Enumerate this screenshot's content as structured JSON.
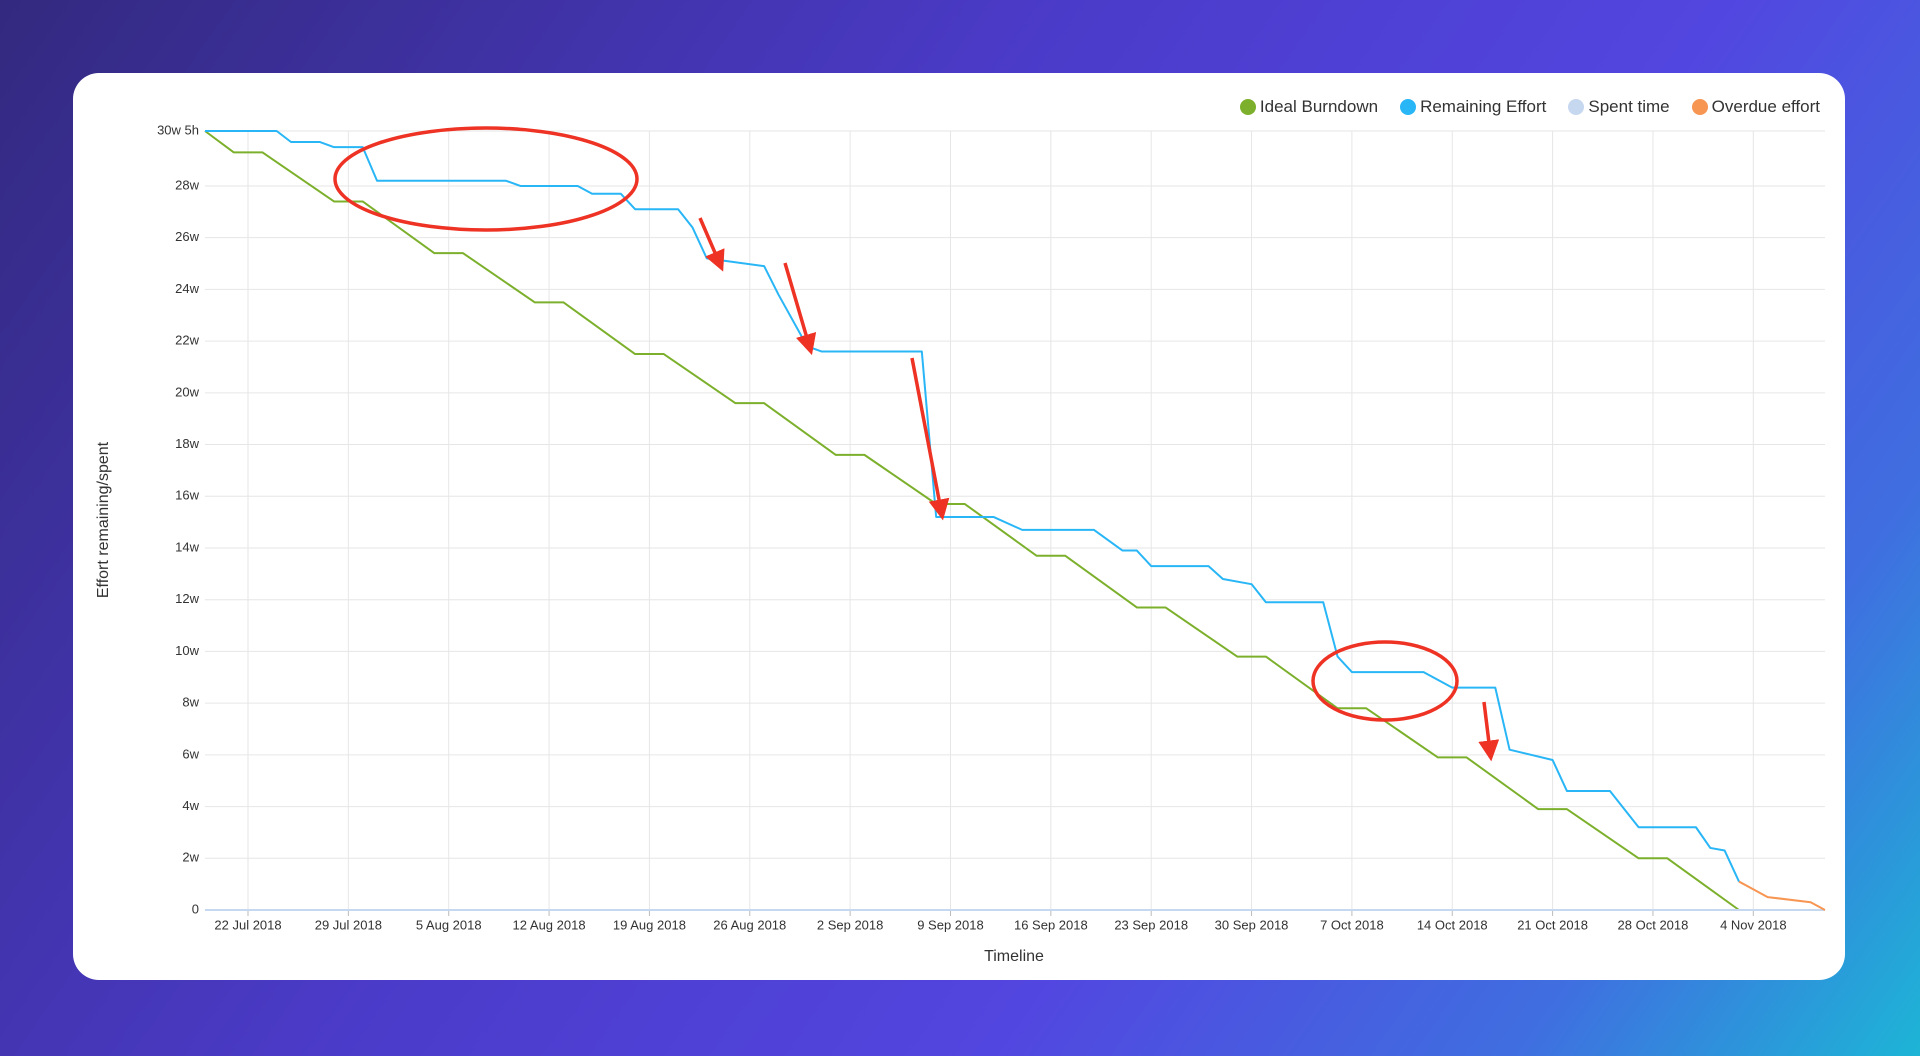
{
  "chart_data": {
    "type": "line",
    "y_label": "Effort remaining/spent",
    "x_label": "Timeline",
    "grid": true,
    "legend": "top-right",
    "xlim": [
      "2018-07-19",
      "2018-11-09"
    ],
    "xticks": [
      {
        "value": "2018-07-22",
        "label": "22 Jul 2018"
      },
      {
        "value": "2018-07-29",
        "label": "29 Jul 2018"
      },
      {
        "value": "2018-08-05",
        "label": "5 Aug 2018"
      },
      {
        "value": "2018-08-12",
        "label": "12 Aug 2018"
      },
      {
        "value": "2018-08-19",
        "label": "19 Aug 2018"
      },
      {
        "value": "2018-08-26",
        "label": "26 Aug 2018"
      },
      {
        "value": "2018-09-02",
        "label": "2 Sep 2018"
      },
      {
        "value": "2018-09-09",
        "label": "9 Sep 2018"
      },
      {
        "value": "2018-09-16",
        "label": "16 Sep 2018"
      },
      {
        "value": "2018-09-23",
        "label": "23 Sep 2018"
      },
      {
        "value": "2018-09-30",
        "label": "30 Sep 2018"
      },
      {
        "value": "2018-10-07",
        "label": "7 Oct 2018"
      },
      {
        "value": "2018-10-14",
        "label": "14 Oct 2018"
      },
      {
        "value": "2018-10-21",
        "label": "21 Oct 2018"
      },
      {
        "value": "2018-10-28",
        "label": "28 Oct 2018"
      },
      {
        "value": "2018-11-04",
        "label": "4 Nov 2018"
      }
    ],
    "ylim": [
      0,
      30.125
    ],
    "yticks": [
      0,
      {
        "value": 2,
        "label": "2w"
      },
      {
        "value": 4,
        "label": "4w"
      },
      {
        "value": 6,
        "label": "6w"
      },
      {
        "value": 8,
        "label": "8w"
      },
      {
        "value": 10,
        "label": "10w"
      },
      {
        "value": 12,
        "label": "12w"
      },
      {
        "value": 14,
        "label": "14w"
      },
      {
        "value": 16,
        "label": "16w"
      },
      {
        "value": 18,
        "label": "18w"
      },
      {
        "value": 20,
        "label": "20w"
      },
      {
        "value": 22,
        "label": "22w"
      },
      {
        "value": 24,
        "label": "24w"
      },
      {
        "value": 26,
        "label": "26w"
      },
      {
        "value": 28,
        "label": "28w"
      },
      {
        "value": 30.125,
        "label": "30w 5h"
      }
    ],
    "series": [
      {
        "name": "Ideal Burndown",
        "color": "#7cb02c",
        "x": [
          "2018-07-19",
          "2018-07-21",
          "2018-07-23",
          "2018-07-28",
          "2018-07-30",
          "2018-08-04",
          "2018-08-06",
          "2018-08-11",
          "2018-08-13",
          "2018-08-18",
          "2018-08-20",
          "2018-08-25",
          "2018-08-27",
          "2018-09-01",
          "2018-09-03",
          "2018-09-08",
          "2018-09-10",
          "2018-09-15",
          "2018-09-17",
          "2018-09-22",
          "2018-09-24",
          "2018-09-29",
          "2018-10-01",
          "2018-10-06",
          "2018-10-08",
          "2018-10-13",
          "2018-10-15",
          "2018-10-20",
          "2018-10-22",
          "2018-10-27",
          "2018-10-29",
          "2018-11-03"
        ],
        "values": [
          30.125,
          29.3,
          29.3,
          27.4,
          27.4,
          25.4,
          25.4,
          23.5,
          23.5,
          21.5,
          21.5,
          19.6,
          19.6,
          17.6,
          17.6,
          15.7,
          15.7,
          13.7,
          13.7,
          11.7,
          11.7,
          9.8,
          9.8,
          7.8,
          7.8,
          5.9,
          5.9,
          3.9,
          3.9,
          2,
          2,
          0
        ]
      },
      {
        "name": "Remaining Effort",
        "color": "#29b6f6",
        "x": [
          "2018-07-19",
          "2018-07-24",
          "2018-07-25",
          "2018-07-27",
          "2018-07-28",
          "2018-07-30",
          "2018-07-31",
          "2018-08-09",
          "2018-08-10",
          "2018-08-14",
          "2018-08-15",
          "2018-08-17",
          "2018-08-18",
          "2018-08-21",
          "2018-08-22",
          "2018-08-23",
          "2018-08-27",
          "2018-08-28",
          "2018-08-30",
          "2018-08-31",
          "2018-09-07",
          "2018-09-08",
          "2018-09-12",
          "2018-09-14",
          "2018-09-19",
          "2018-09-21",
          "2018-09-22",
          "2018-09-23",
          "2018-09-27",
          "2018-09-28",
          "2018-09-30",
          "2018-10-01",
          "2018-10-05",
          "2018-10-06",
          "2018-10-07",
          "2018-10-12",
          "2018-10-14",
          "2018-10-17",
          "2018-10-18",
          "2018-10-21",
          "2018-10-22",
          "2018-10-25",
          "2018-10-27",
          "2018-10-31",
          "2018-11-01",
          "2018-11-02",
          "2018-11-03"
        ],
        "values": [
          30.125,
          30.125,
          29.7,
          29.7,
          29.5,
          29.5,
          28.2,
          28.2,
          28,
          28,
          27.7,
          27.7,
          27.1,
          27.1,
          26.4,
          25.2,
          24.9,
          23.8,
          21.8,
          21.6,
          21.6,
          15.2,
          15.2,
          14.7,
          14.7,
          13.9,
          13.9,
          13.3,
          13.3,
          12.8,
          12.6,
          11.9,
          11.9,
          9.8,
          9.2,
          9.2,
          8.6,
          8.6,
          6.2,
          5.8,
          4.6,
          4.6,
          3.2,
          3.2,
          2.4,
          2.3,
          1.1
        ]
      },
      {
        "name": "Spent time",
        "color": "#c6d7f0",
        "x": [
          "2018-07-19",
          "2018-11-09"
        ],
        "values": [
          0,
          0
        ]
      },
      {
        "name": "Overdue effort",
        "color": "#f79552",
        "x": [
          "2018-11-03",
          "2018-11-05",
          "2018-11-08",
          "2018-11-09"
        ],
        "values": [
          1.1,
          0.5,
          0.3,
          0
        ]
      }
    ]
  }
}
